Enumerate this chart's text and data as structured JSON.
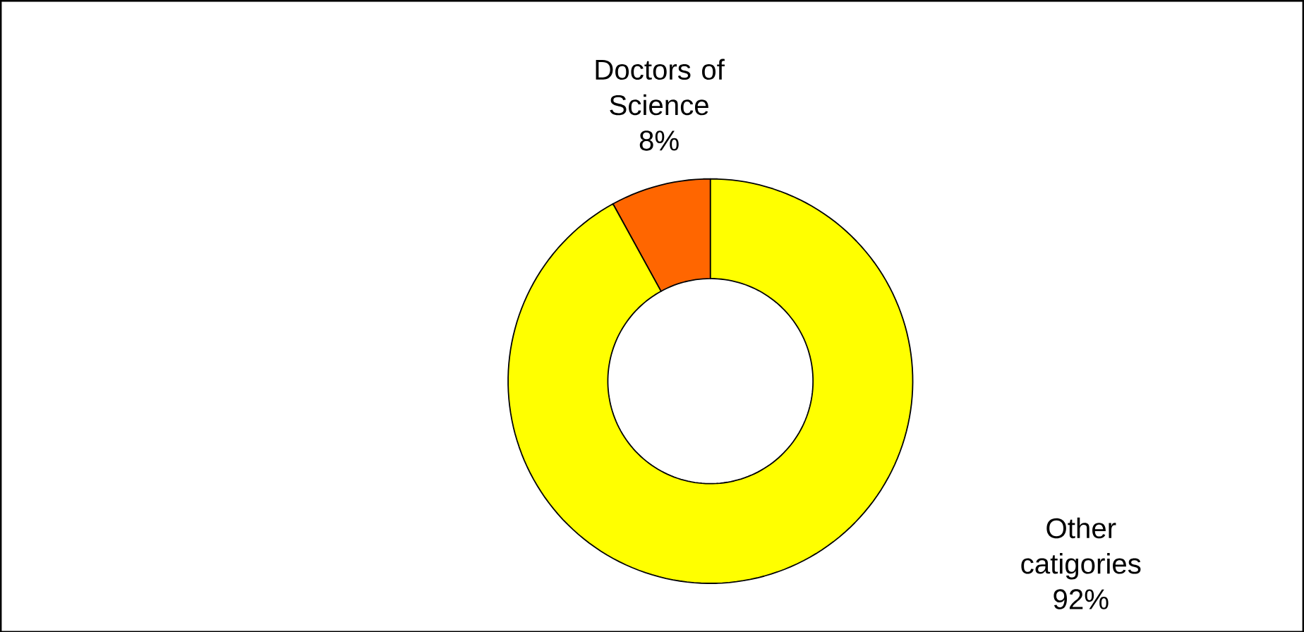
{
  "chart_data": {
    "type": "donut",
    "categories": [
      "Doctors of Science",
      "Other catigories"
    ],
    "values": [
      8,
      92
    ],
    "colors": [
      "#ff6600",
      "#ffff00"
    ],
    "value_labels": [
      "8%",
      "92%"
    ]
  }
}
